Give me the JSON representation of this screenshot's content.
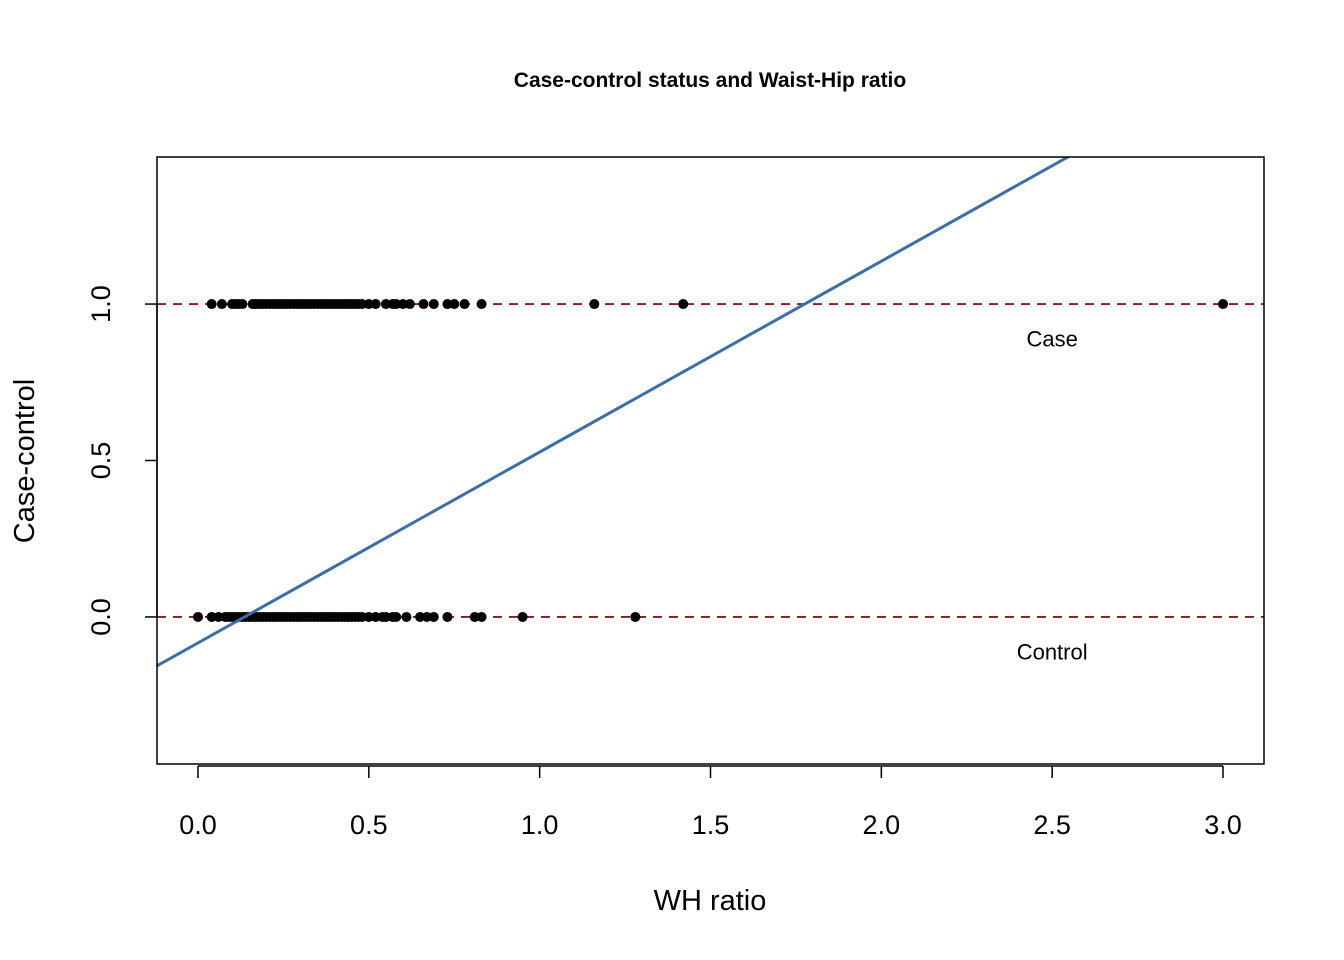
{
  "chart_data": {
    "type": "scatter",
    "title": "Case-control status and Waist-Hip ratio",
    "xlabel": "WH ratio",
    "ylabel": "Case-control",
    "xlim": [
      -0.12,
      3.12
    ],
    "ylim": [
      -0.47,
      1.47
    ],
    "x_ticks": [
      "0.0",
      "0.5",
      "1.0",
      "1.5",
      "2.0",
      "2.5",
      "3.0"
    ],
    "y_ticks": [
      "0.0",
      "0.5",
      "1.0"
    ],
    "grid": false,
    "reference_lines": [
      {
        "y": 1.0,
        "style": "dashed",
        "color": "#8B1A1A"
      },
      {
        "y": 0.0,
        "style": "dashed",
        "color": "#8B1A1A"
      }
    ],
    "annotations": [
      {
        "text": "Case",
        "x": 2.5,
        "y": 0.89
      },
      {
        "text": "Control",
        "x": 2.5,
        "y": -0.11
      }
    ],
    "fit_line": {
      "intercept": -0.083,
      "slope": 0.61,
      "color": "#3C6EA8"
    },
    "series": [
      {
        "group": "case",
        "color": "#000000",
        "x": [
          0.04,
          0.07,
          0.1,
          0.11,
          0.12,
          0.13,
          0.16,
          0.17,
          0.18,
          0.19,
          0.2,
          0.21,
          0.22,
          0.23,
          0.24,
          0.25,
          0.26,
          0.27,
          0.28,
          0.29,
          0.3,
          0.31,
          0.32,
          0.33,
          0.34,
          0.35,
          0.36,
          0.37,
          0.38,
          0.39,
          0.4,
          0.41,
          0.42,
          0.43,
          0.44,
          0.45,
          0.46,
          0.47,
          0.48,
          0.5,
          0.52,
          0.55,
          0.57,
          0.58,
          0.6,
          0.62,
          0.66,
          0.69,
          0.73,
          0.75,
          0.78,
          0.83,
          1.16,
          1.42,
          3.0
        ],
        "y": [
          1,
          1,
          1,
          1,
          1,
          1,
          1,
          1,
          1,
          1,
          1,
          1,
          1,
          1,
          1,
          1,
          1,
          1,
          1,
          1,
          1,
          1,
          1,
          1,
          1,
          1,
          1,
          1,
          1,
          1,
          1,
          1,
          1,
          1,
          1,
          1,
          1,
          1,
          1,
          1,
          1,
          1,
          1,
          1,
          1,
          1,
          1,
          1,
          1,
          1,
          1,
          1,
          1,
          1,
          1
        ]
      },
      {
        "group": "control",
        "color": "#000000",
        "x": [
          0.0,
          0.04,
          0.06,
          0.08,
          0.09,
          0.1,
          0.11,
          0.12,
          0.13,
          0.14,
          0.15,
          0.16,
          0.17,
          0.18,
          0.19,
          0.2,
          0.21,
          0.22,
          0.23,
          0.24,
          0.25,
          0.26,
          0.27,
          0.28,
          0.29,
          0.3,
          0.31,
          0.32,
          0.33,
          0.34,
          0.35,
          0.36,
          0.37,
          0.38,
          0.39,
          0.4,
          0.41,
          0.42,
          0.43,
          0.44,
          0.45,
          0.46,
          0.47,
          0.48,
          0.5,
          0.52,
          0.54,
          0.55,
          0.57,
          0.58,
          0.61,
          0.65,
          0.67,
          0.69,
          0.73,
          0.81,
          0.83,
          0.95,
          1.28
        ],
        "y": [
          0,
          0,
          0,
          0,
          0,
          0,
          0,
          0,
          0,
          0,
          0,
          0,
          0,
          0,
          0,
          0,
          0,
          0,
          0,
          0,
          0,
          0,
          0,
          0,
          0,
          0,
          0,
          0,
          0,
          0,
          0,
          0,
          0,
          0,
          0,
          0,
          0,
          0,
          0,
          0,
          0,
          0,
          0,
          0,
          0,
          0,
          0,
          0,
          0,
          0,
          0,
          0,
          0,
          0,
          0,
          0,
          0,
          0,
          0
        ]
      }
    ]
  }
}
